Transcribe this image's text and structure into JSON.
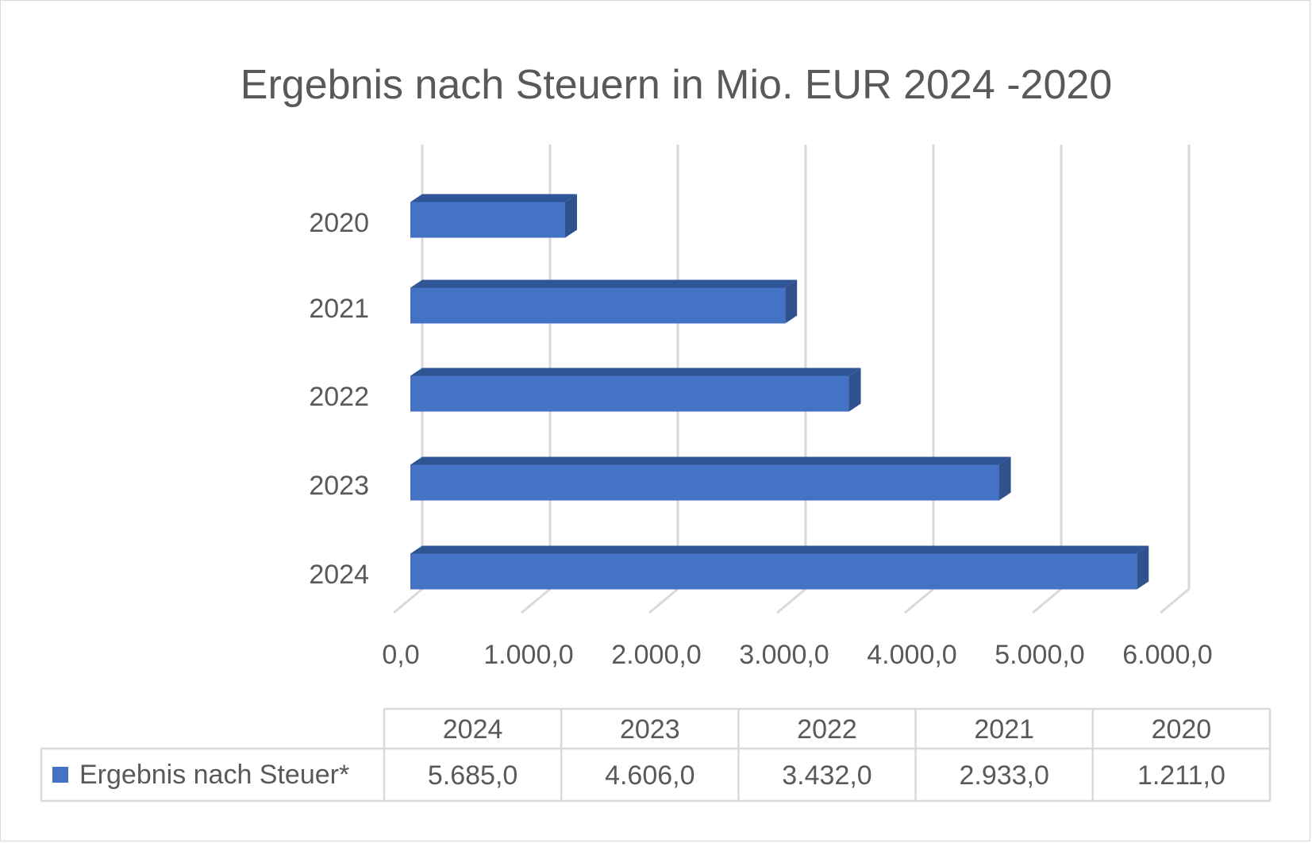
{
  "chart_data": {
    "type": "bar",
    "orientation": "horizontal",
    "title": "Ergebnis nach Steuern in Mio. EUR 2024 -2020",
    "categories": [
      "2020",
      "2021",
      "2022",
      "2023",
      "2024"
    ],
    "series": [
      {
        "name": "Ergebnis nach Steuer*",
        "values": [
          1211.0,
          2933.0,
          3432.0,
          4606.0,
          5685.0
        ]
      }
    ],
    "xlim": [
      0,
      6000
    ],
    "x_ticks": [
      "0,0",
      "1.000,0",
      "2.000,0",
      "3.000,0",
      "4.000,0",
      "5.000,0",
      "6.000,0"
    ],
    "grid": true,
    "legend": "data-table",
    "data_table": {
      "columns": [
        "2024",
        "2023",
        "2022",
        "2021",
        "2020"
      ],
      "row_label": "Ergebnis nach Steuer*",
      "values": [
        "5.685,0",
        "4.606,0",
        "3.432,0",
        "2.933,0",
        "1.211,0"
      ]
    },
    "colors": {
      "bar": "#4472c4",
      "bar_side": "#2f528f",
      "bar_top": "#2f5597",
      "grid": "#d9d9d9",
      "text": "#595959"
    }
  }
}
